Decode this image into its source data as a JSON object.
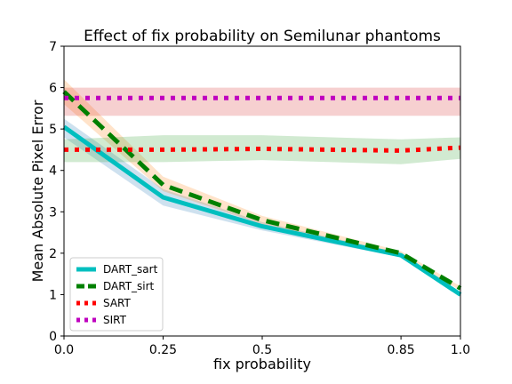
{
  "chart_data": {
    "type": "line",
    "title": "Effect of fix probability on Semilunar phantoms",
    "xlabel": "fix probability",
    "ylabel": "Mean Absolute Pixel Error",
    "xlim": [
      0,
      1
    ],
    "ylim": [
      0,
      7
    ],
    "xticks": [
      0,
      0.25,
      0.5,
      0.85,
      1
    ],
    "xtick_labels": [
      "0.0",
      "0.25",
      "0.5",
      "0.85",
      "1.0"
    ],
    "yticks": [
      0,
      1,
      2,
      3,
      4,
      5,
      6,
      7
    ],
    "ytick_labels": [
      "0",
      "1",
      "2",
      "3",
      "4",
      "5",
      "6",
      "7"
    ],
    "grid": false,
    "legend_position": "lower-left",
    "x": [
      0,
      0.25,
      0.5,
      0.85,
      1
    ],
    "series": [
      {
        "name": "DART_sart",
        "values": [
          5.05,
          3.35,
          2.65,
          1.95,
          1.0
        ],
        "lower": [
          4.8,
          3.15,
          2.55,
          1.9,
          0.95
        ],
        "upper": [
          5.25,
          3.55,
          2.75,
          2.0,
          1.05
        ],
        "color": "#00bfbf",
        "band_color": "#1f77b4",
        "style": "solid"
      },
      {
        "name": "DART_sirt",
        "values": [
          5.9,
          3.65,
          2.8,
          2.0,
          1.15
        ],
        "lower": [
          5.6,
          3.5,
          2.7,
          1.95,
          1.1
        ],
        "upper": [
          6.2,
          3.85,
          2.9,
          2.05,
          1.2
        ],
        "color": "#008000",
        "band_color": "#ff7f0e",
        "style": "dashed"
      },
      {
        "name": "SART",
        "values": [
          4.5,
          4.5,
          4.52,
          4.48,
          4.55
        ],
        "lower": [
          4.2,
          4.2,
          4.25,
          4.15,
          4.28
        ],
        "upper": [
          4.75,
          4.85,
          4.85,
          4.75,
          4.8
        ],
        "color": "#ff0000",
        "band_color": "#2ca02c",
        "style": "dotted"
      },
      {
        "name": "SIRT",
        "values": [
          5.75,
          5.75,
          5.75,
          5.75,
          5.75
        ],
        "lower": [
          5.32,
          5.32,
          5.32,
          5.32,
          5.32
        ],
        "upper": [
          6.0,
          6.0,
          6.0,
          6.0,
          6.0
        ],
        "color": "#bf00bf",
        "band_color": "#d62728",
        "style": "dotted"
      }
    ]
  }
}
